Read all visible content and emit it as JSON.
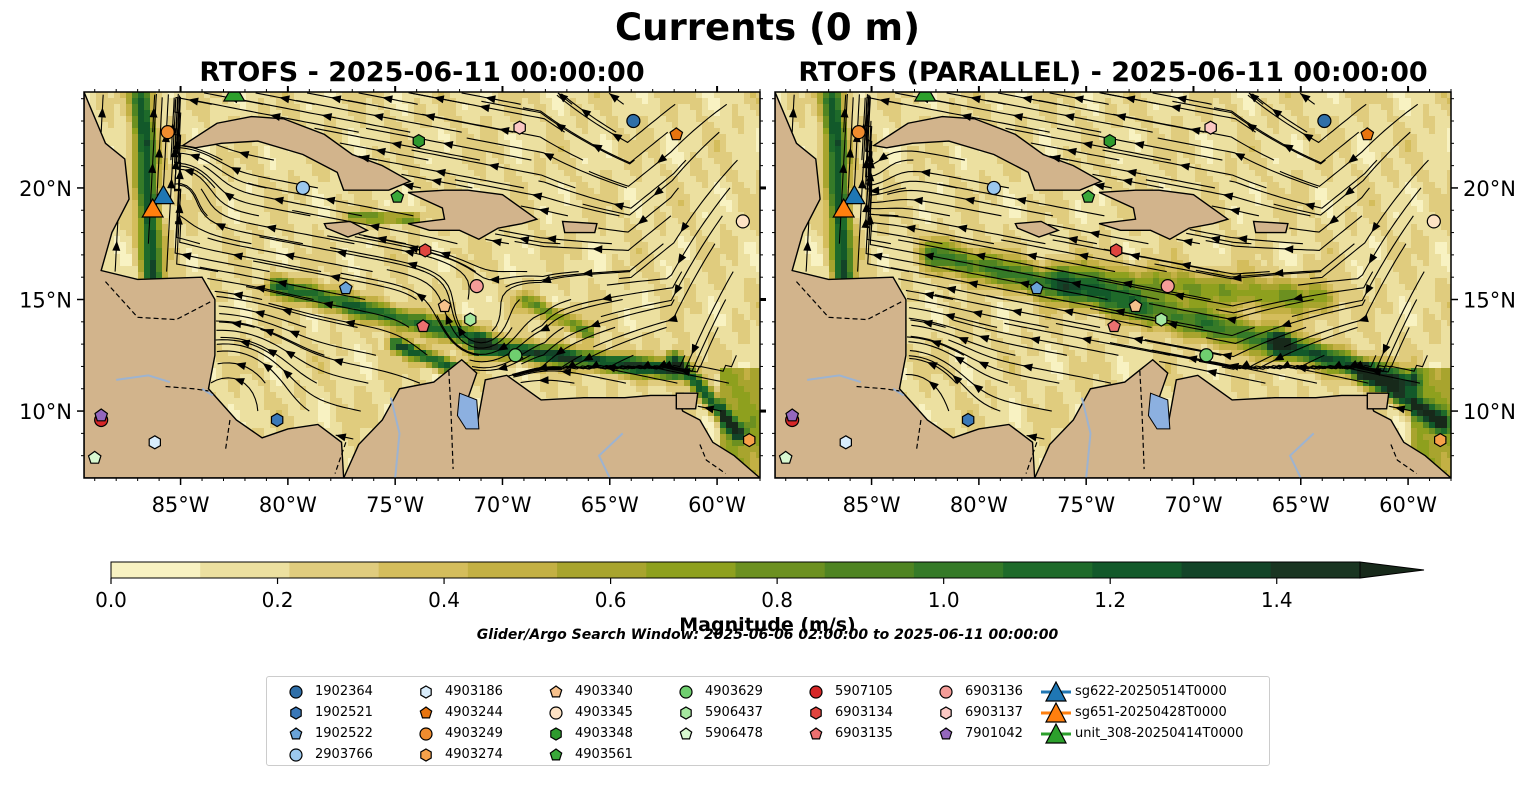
{
  "figure": {
    "title": "Currents (0 m)",
    "panels": [
      {
        "title": "RTOFS - 2025-06-11 00:00:00"
      },
      {
        "title": "RTOFS (PARALLEL) - 2025-06-11 00:00:00"
      }
    ],
    "lon_ticks": [
      "85°W",
      "80°W",
      "75°W",
      "70°W",
      "65°W",
      "60°W"
    ],
    "lat_ticks": [
      "20°N",
      "15°N",
      "10°N"
    ],
    "extent": {
      "lon": [
        -89.5,
        -58.0
      ],
      "lat": [
        7.0,
        24.3
      ]
    },
    "colorbar": {
      "label": "Magnitude (m/s)",
      "ticks": [
        "0.0",
        "0.2",
        "0.4",
        "0.6",
        "0.8",
        "1.0",
        "1.2",
        "1.4"
      ],
      "range": [
        0,
        1.5
      ],
      "extend": "max",
      "colors": [
        "#f8f2c2",
        "#ece0a0",
        "#e0cc7e",
        "#d4bd5c",
        "#c3b044",
        "#a8a42e",
        "#8ea01e",
        "#6c9020",
        "#4f8422",
        "#357a28",
        "#1e6a2a",
        "#12592a",
        "#124428",
        "#1a3522",
        "#17291a"
      ]
    },
    "search_window": "Glider/Argo Search Window: 2025-06-06 02:00:00 to 2025-06-11 00:00:00"
  },
  "legend": {
    "columns": [
      [
        {
          "label": "1902364",
          "marker": "circle",
          "color": "#2f6fa8"
        },
        {
          "label": "1902521",
          "marker": "hexagon",
          "color": "#3a78b8"
        },
        {
          "label": "1902522",
          "marker": "pentagon",
          "color": "#6aa3d8"
        },
        {
          "label": "2903766",
          "marker": "circle",
          "color": "#9cc8ee"
        }
      ],
      [
        {
          "label": "4903186",
          "marker": "hexagon",
          "color": "#d8ecfb"
        },
        {
          "label": "4903244",
          "marker": "pentagon",
          "color": "#e8740e"
        },
        {
          "label": "4903249",
          "marker": "circle",
          "color": "#f08c2e"
        },
        {
          "label": "4903274",
          "marker": "hexagon",
          "color": "#f6a14a"
        }
      ],
      [
        {
          "label": "4903340",
          "marker": "pentagon",
          "color": "#f7c18c"
        },
        {
          "label": "4903345",
          "marker": "circle",
          "color": "#fde2c4"
        },
        {
          "label": "4903348",
          "marker": "hexagon",
          "color": "#2e9a2e"
        },
        {
          "label": "4903561",
          "marker": "pentagon",
          "color": "#3aa83a"
        }
      ],
      [
        {
          "label": "4903629",
          "marker": "circle",
          "color": "#6fcf6f"
        },
        {
          "label": "5906437",
          "marker": "hexagon",
          "color": "#a6e8a0"
        },
        {
          "label": "5906478",
          "marker": "pentagon",
          "color": "#d8f8d0"
        }
      ],
      [
        {
          "label": "5907105",
          "marker": "circle",
          "color": "#d62728"
        },
        {
          "label": "6903134",
          "marker": "hexagon",
          "color": "#e0443e"
        },
        {
          "label": "6903135",
          "marker": "pentagon",
          "color": "#ec7070"
        }
      ],
      [
        {
          "label": "6903136",
          "marker": "circle",
          "color": "#f49c98"
        },
        {
          "label": "6903137",
          "marker": "hexagon",
          "color": "#fbc8c4"
        },
        {
          "label": "7901042",
          "marker": "pentagon",
          "color": "#9467bd"
        }
      ],
      [
        {
          "label": "sg622-20250514T0000",
          "marker": "triangle",
          "color": "#1f77b4"
        },
        {
          "label": "sg651-20250428T0000",
          "marker": "triangle",
          "color": "#ff7f0e"
        },
        {
          "label": "unit_308-20250414T0000",
          "marker": "triangle",
          "color": "#2ca02c"
        }
      ]
    ]
  },
  "observations": [
    {
      "id": "1902364",
      "lon": -63.9,
      "lat": 23.0
    },
    {
      "id": "1902521",
      "lon": -80.5,
      "lat": 9.6
    },
    {
      "id": "1902522",
      "lon": -77.3,
      "lat": 15.5
    },
    {
      "id": "2903766",
      "lon": -79.3,
      "lat": 20.0
    },
    {
      "id": "4903186",
      "lon": -86.2,
      "lat": 8.6
    },
    {
      "id": "4903244",
      "lon": -61.9,
      "lat": 22.4
    },
    {
      "id": "4903249",
      "lon": -85.6,
      "lat": 22.5
    },
    {
      "id": "4903274",
      "lon": -58.5,
      "lat": 8.7
    },
    {
      "id": "4903340",
      "lon": -72.7,
      "lat": 14.7
    },
    {
      "id": "4903345",
      "lon": -58.8,
      "lat": 18.5
    },
    {
      "id": "4903348",
      "lon": -73.9,
      "lat": 22.1
    },
    {
      "id": "4903561",
      "lon": -74.9,
      "lat": 19.6
    },
    {
      "id": "4903629",
      "lon": -69.4,
      "lat": 12.5
    },
    {
      "id": "5906437",
      "lon": -71.5,
      "lat": 14.1
    },
    {
      "id": "5906478",
      "lon": -89.0,
      "lat": 7.9
    },
    {
      "id": "5907105",
      "lon": -88.7,
      "lat": 9.6
    },
    {
      "id": "6903134",
      "lon": -73.6,
      "lat": 17.2
    },
    {
      "id": "6903135",
      "lon": -73.7,
      "lat": 13.8
    },
    {
      "id": "6903136",
      "lon": -71.2,
      "lat": 15.6
    },
    {
      "id": "6903137",
      "lon": -69.2,
      "lat": 22.7
    },
    {
      "id": "7901042",
      "lon": -88.7,
      "lat": 9.8
    }
  ],
  "gliders": [
    {
      "id": "sg622-20250514T0000",
      "lon": -85.8,
      "lat": 19.7
    },
    {
      "id": "sg651-20250428T0000",
      "lon": -86.3,
      "lat": 19.1
    },
    {
      "id": "unit_308-20250414T0000",
      "lon": -82.5,
      "lat": 24.3
    }
  ]
}
